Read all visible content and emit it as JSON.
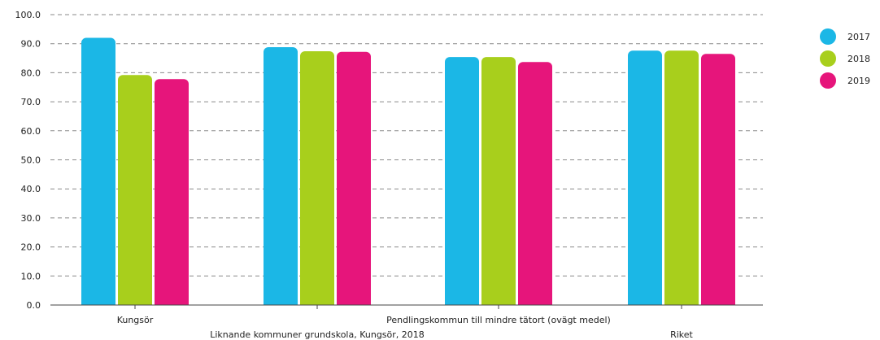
{
  "chart_data": {
    "type": "bar",
    "categories": [
      "Kungsör",
      "Liknande kommuner grundskola, Kungsör, 2018",
      "Pendlingskommun till mindre tätort (ovägt medel)",
      "Riket"
    ],
    "series": [
      {
        "name": "2017",
        "values": [
          92.0,
          88.8,
          85.4,
          87.6
        ],
        "color": "#1bb7e6"
      },
      {
        "name": "2018",
        "values": [
          79.2,
          87.4,
          85.4,
          87.6
        ],
        "color": "#a8cf1c"
      },
      {
        "name": "2019",
        "values": [
          77.8,
          87.2,
          83.7,
          86.5
        ],
        "color": "#e6157b"
      }
    ],
    "ylim": [
      0,
      100
    ],
    "yticks": [
      "0.0",
      "10.0",
      "20.0",
      "30.0",
      "40.0",
      "50.0",
      "60.0",
      "70.0",
      "80.0",
      "90.0",
      "100.0"
    ],
    "grid": true,
    "legend_position": "right"
  }
}
